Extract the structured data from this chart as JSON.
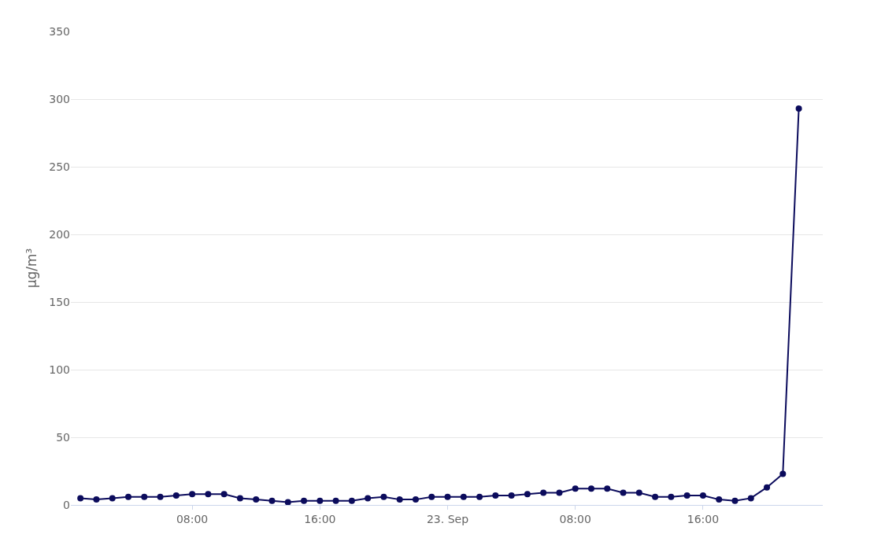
{
  "chart_data": {
    "type": "line",
    "ylabel": "µg/m³",
    "x": [
      "--09-22T01:00",
      "--09-22T02:00",
      "--09-22T03:00",
      "--09-22T04:00",
      "--09-22T05:00",
      "--09-22T06:00",
      "--09-22T07:00",
      "--09-22T08:00",
      "--09-22T09:00",
      "--09-22T10:00",
      "--09-22T11:00",
      "--09-22T12:00",
      "--09-22T13:00",
      "--09-22T14:00",
      "--09-22T15:00",
      "--09-22T16:00",
      "--09-22T17:00",
      "--09-22T18:00",
      "--09-22T19:00",
      "--09-22T20:00",
      "--09-22T21:00",
      "--09-22T22:00",
      "--09-22T23:00",
      "--09-23T00:00",
      "--09-23T01:00",
      "--09-23T02:00",
      "--09-23T03:00",
      "--09-23T04:00",
      "--09-23T05:00",
      "--09-23T06:00",
      "--09-23T07:00",
      "--09-23T08:00",
      "--09-23T09:00",
      "--09-23T10:00",
      "--09-23T11:00",
      "--09-23T12:00",
      "--09-23T13:00",
      "--09-23T14:00",
      "--09-23T15:00",
      "--09-23T16:00",
      "--09-23T17:00",
      "--09-23T18:00",
      "--09-23T19:00",
      "--09-23T20:00",
      "--09-23T21:00",
      "--09-23T22:00"
    ],
    "series": [
      {
        "color": "#0b0b5c",
        "values": [
          5,
          4,
          5,
          6,
          6,
          6,
          7,
          8,
          8,
          8,
          5,
          4,
          3,
          2,
          3,
          3,
          3,
          3,
          5,
          6,
          4,
          4,
          6,
          6,
          6,
          6,
          7,
          7,
          8,
          9,
          9,
          12,
          12,
          12,
          9,
          9,
          6,
          6,
          7,
          7,
          4,
          3,
          5,
          13,
          23,
          293
        ]
      }
    ],
    "xlim": [
      "--09-22T00:24",
      "--09-23T23:30"
    ],
    "xticks": [
      {
        "value": "--09-22T08:00",
        "label": "08:00"
      },
      {
        "value": "--09-22T16:00",
        "label": "16:00"
      },
      {
        "value": "--09-23T00:00",
        "label": "23. Sep"
      },
      {
        "value": "--09-23T08:00",
        "label": "08:00"
      },
      {
        "value": "--09-23T16:00",
        "label": "16:00"
      }
    ],
    "ylim": [
      0,
      350
    ],
    "yticks": [
      0,
      50,
      100,
      150,
      200,
      250,
      300,
      350
    ],
    "grid": "y",
    "marker": "circle",
    "line_style": "solid"
  }
}
